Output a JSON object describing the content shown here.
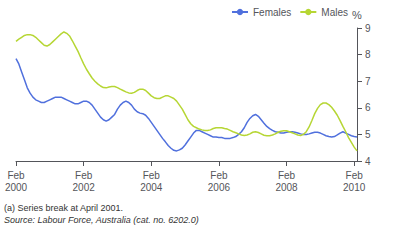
{
  "chart_data": {
    "type": "line",
    "ylabel": "%",
    "categories": [
      "Feb\n2000",
      null,
      null,
      null,
      null,
      null,
      null,
      null,
      null,
      null,
      null,
      null,
      null,
      null,
      null,
      null,
      null,
      null,
      null,
      null,
      null,
      null,
      null,
      null,
      "Feb\n2002",
      null,
      null,
      null,
      null,
      null,
      null,
      null,
      null,
      null,
      null,
      null,
      null,
      null,
      null,
      null,
      null,
      null,
      null,
      null,
      null,
      null,
      null,
      null,
      "Feb\n2004",
      null,
      null,
      null,
      null,
      null,
      null,
      null,
      null,
      null,
      null,
      null,
      null,
      null,
      null,
      null,
      null,
      null,
      null,
      null,
      null,
      null,
      null,
      null,
      "Feb\n2006",
      null,
      null,
      null,
      null,
      null,
      null,
      null,
      null,
      null,
      null,
      null,
      null,
      null,
      null,
      null,
      null,
      null,
      null,
      null,
      null,
      null,
      null,
      null,
      "Feb\n2008",
      null,
      null,
      null,
      null,
      null,
      null,
      null,
      null,
      null,
      null,
      null,
      null,
      null,
      null,
      null,
      null,
      null,
      null,
      null,
      null,
      null,
      null,
      null,
      "Feb\n2010",
      null
    ],
    "series": [
      {
        "name": "Females",
        "values": [
          7.85,
          7.65,
          7.35,
          7.05,
          6.75,
          6.55,
          6.4,
          6.3,
          6.25,
          6.2,
          6.2,
          6.25,
          6.3,
          6.35,
          6.4,
          6.4,
          6.4,
          6.35,
          6.3,
          6.25,
          6.2,
          6.15,
          6.15,
          6.2,
          6.25,
          6.25,
          6.2,
          6.1,
          5.95,
          5.8,
          5.65,
          5.55,
          5.5,
          5.55,
          5.65,
          5.75,
          5.95,
          6.1,
          6.2,
          6.25,
          6.2,
          6.1,
          5.95,
          5.85,
          5.8,
          5.78,
          5.72,
          5.6,
          5.45,
          5.3,
          5.15,
          5.0,
          4.85,
          4.72,
          4.58,
          4.48,
          4.4,
          4.38,
          4.42,
          4.48,
          4.6,
          4.75,
          4.9,
          5.05,
          5.15,
          5.15,
          5.1,
          5.05,
          5.0,
          4.95,
          4.9,
          4.9,
          4.88,
          4.88,
          4.85,
          4.85,
          4.85,
          4.88,
          4.92,
          5.0,
          5.1,
          5.25,
          5.45,
          5.6,
          5.7,
          5.75,
          5.68,
          5.55,
          5.42,
          5.3,
          5.22,
          5.15,
          5.1,
          5.08,
          5.05,
          5.05,
          5.08,
          5.1,
          5.1,
          5.08,
          5.05,
          5.02,
          5.0,
          5.0,
          5.02,
          5.05,
          5.08,
          5.08,
          5.05,
          5.0,
          4.95,
          4.92,
          4.9,
          4.92,
          4.98,
          5.05,
          5.1,
          5.05,
          5.0,
          4.95,
          4.92,
          4.9
        ]
      },
      {
        "name": "Males",
        "values": [
          8.5,
          8.58,
          8.65,
          8.72,
          8.75,
          8.75,
          8.72,
          8.65,
          8.55,
          8.45,
          8.35,
          8.32,
          8.38,
          8.48,
          8.58,
          8.68,
          8.78,
          8.85,
          8.8,
          8.7,
          8.52,
          8.32,
          8.12,
          7.88,
          7.65,
          7.45,
          7.28,
          7.12,
          7.0,
          6.9,
          6.82,
          6.76,
          6.75,
          6.78,
          6.8,
          6.8,
          6.76,
          6.7,
          6.65,
          6.6,
          6.56,
          6.55,
          6.58,
          6.65,
          6.7,
          6.7,
          6.65,
          6.55,
          6.45,
          6.38,
          6.35,
          6.35,
          6.4,
          6.45,
          6.45,
          6.4,
          6.35,
          6.25,
          6.1,
          5.95,
          5.75,
          5.55,
          5.4,
          5.3,
          5.25,
          5.2,
          5.17,
          5.15,
          5.15,
          5.17,
          5.22,
          5.25,
          5.25,
          5.25,
          5.22,
          5.2,
          5.15,
          5.1,
          5.06,
          5.02,
          4.98,
          4.96,
          4.98,
          5.02,
          5.08,
          5.1,
          5.07,
          5.02,
          4.97,
          4.95,
          4.95,
          4.98,
          5.02,
          5.08,
          5.12,
          5.14,
          5.14,
          5.1,
          5.06,
          5.02,
          4.98,
          4.96,
          5.0,
          5.1,
          5.28,
          5.52,
          5.78,
          5.98,
          6.12,
          6.18,
          6.18,
          6.12,
          6.02,
          5.88,
          5.72,
          5.52,
          5.3,
          5.1,
          4.88,
          4.7,
          4.52,
          4.38
        ]
      }
    ],
    "ylim": [
      4,
      9
    ],
    "yticks": [
      4,
      5,
      6,
      7,
      8,
      9
    ],
    "grid": false,
    "legend": "upper right",
    "annotations": [
      "(a) Series break at April 2001.",
      "Source: Labour Force, Australia (cat. no. 6202.0)"
    ]
  }
}
